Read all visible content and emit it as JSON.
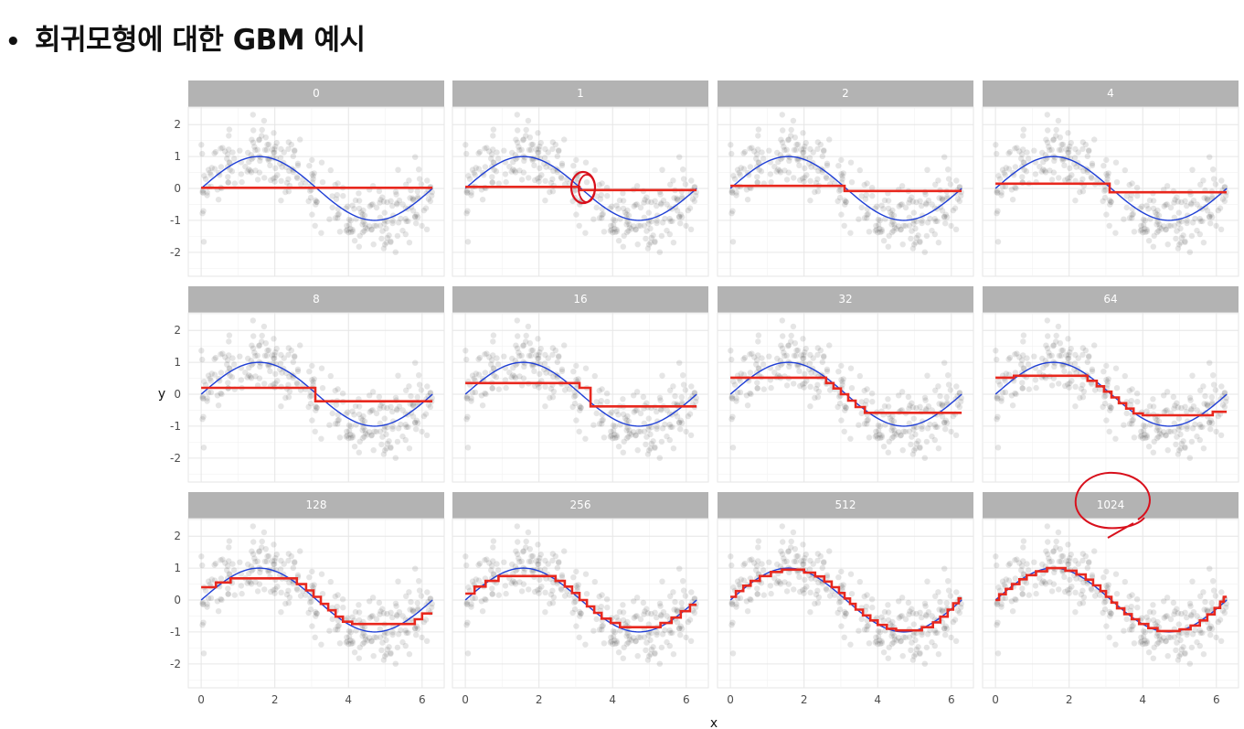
{
  "slide": {
    "bullet": "•",
    "title": "회귀모형에 대한 GBM 예시"
  },
  "colors": {
    "true_function": "#1f3fd6",
    "prediction": "#e8281e",
    "points": "#333333",
    "strip_background": "#b3b3b3",
    "annotation": "#d8101c"
  },
  "chart_data": {
    "type": "scatter",
    "facet_layout": {
      "rows": 3,
      "cols": 4
    },
    "xlabel": "x",
    "ylabel": "y",
    "xlim": [
      -0.35,
      6.6
    ],
    "ylim": [
      -2.75,
      2.55
    ],
    "xticks": [
      0,
      2,
      4,
      6
    ],
    "yticks": [
      2,
      1,
      0,
      -1,
      -2
    ],
    "grid": true,
    "panels": [
      {
        "label": "0",
        "prediction_steps": [
          [
            0.0,
            0.02
          ],
          [
            6.28,
            0.02
          ]
        ]
      },
      {
        "label": "1",
        "prediction_steps": [
          [
            0.0,
            0.05
          ],
          [
            3.1,
            0.05
          ],
          [
            3.1,
            -0.05
          ],
          [
            6.28,
            -0.05
          ]
        ]
      },
      {
        "label": "2",
        "prediction_steps": [
          [
            0.0,
            0.08
          ],
          [
            3.1,
            0.08
          ],
          [
            3.1,
            -0.08
          ],
          [
            6.28,
            -0.08
          ]
        ]
      },
      {
        "label": "4",
        "prediction_steps": [
          [
            0.0,
            0.15
          ],
          [
            3.1,
            0.15
          ],
          [
            3.1,
            -0.12
          ],
          [
            6.28,
            -0.12
          ]
        ]
      },
      {
        "label": "8",
        "prediction_steps": [
          [
            0.0,
            0.2
          ],
          [
            3.1,
            0.2
          ],
          [
            3.1,
            -0.22
          ],
          [
            6.28,
            -0.22
          ]
        ]
      },
      {
        "label": "16",
        "prediction_steps": [
          [
            0.0,
            0.35
          ],
          [
            3.1,
            0.35
          ],
          [
            3.1,
            0.2
          ],
          [
            3.4,
            0.2
          ],
          [
            3.4,
            -0.38
          ],
          [
            6.28,
            -0.38
          ]
        ]
      },
      {
        "label": "32",
        "prediction_steps": [
          [
            0.0,
            0.52
          ],
          [
            2.6,
            0.52
          ],
          [
            2.6,
            0.35
          ],
          [
            2.8,
            0.35
          ],
          [
            2.8,
            0.18
          ],
          [
            3.0,
            0.18
          ],
          [
            3.0,
            0.0
          ],
          [
            3.2,
            0.0
          ],
          [
            3.2,
            -0.2
          ],
          [
            3.4,
            -0.2
          ],
          [
            3.4,
            -0.4
          ],
          [
            3.65,
            -0.4
          ],
          [
            3.65,
            -0.58
          ],
          [
            6.28,
            -0.58
          ]
        ]
      },
      {
        "label": "64",
        "prediction_steps": [
          [
            0.0,
            0.52
          ],
          [
            0.5,
            0.52
          ],
          [
            0.5,
            0.58
          ],
          [
            2.5,
            0.58
          ],
          [
            2.5,
            0.42
          ],
          [
            2.75,
            0.42
          ],
          [
            2.75,
            0.25
          ],
          [
            2.95,
            0.25
          ],
          [
            2.95,
            0.08
          ],
          [
            3.15,
            0.08
          ],
          [
            3.15,
            -0.1
          ],
          [
            3.35,
            -0.1
          ],
          [
            3.35,
            -0.28
          ],
          [
            3.55,
            -0.28
          ],
          [
            3.55,
            -0.45
          ],
          [
            3.75,
            -0.45
          ],
          [
            3.75,
            -0.6
          ],
          [
            4.0,
            -0.6
          ],
          [
            4.0,
            -0.66
          ],
          [
            5.9,
            -0.66
          ],
          [
            5.9,
            -0.55
          ],
          [
            6.28,
            -0.55
          ]
        ]
      },
      {
        "label": "128",
        "prediction_steps": [
          [
            0.0,
            0.4
          ],
          [
            0.4,
            0.4
          ],
          [
            0.4,
            0.55
          ],
          [
            0.8,
            0.55
          ],
          [
            0.8,
            0.68
          ],
          [
            2.6,
            0.68
          ],
          [
            2.6,
            0.5
          ],
          [
            2.85,
            0.5
          ],
          [
            2.85,
            0.3
          ],
          [
            3.05,
            0.3
          ],
          [
            3.05,
            0.1
          ],
          [
            3.25,
            0.1
          ],
          [
            3.25,
            -0.12
          ],
          [
            3.45,
            -0.12
          ],
          [
            3.45,
            -0.32
          ],
          [
            3.65,
            -0.32
          ],
          [
            3.65,
            -0.52
          ],
          [
            3.85,
            -0.52
          ],
          [
            3.85,
            -0.68
          ],
          [
            4.1,
            -0.68
          ],
          [
            4.1,
            -0.75
          ],
          [
            5.8,
            -0.75
          ],
          [
            5.8,
            -0.6
          ],
          [
            6.0,
            -0.6
          ],
          [
            6.0,
            -0.42
          ],
          [
            6.28,
            -0.42
          ]
        ]
      },
      {
        "label": "256",
        "prediction_steps": [
          [
            0.0,
            0.2
          ],
          [
            0.25,
            0.2
          ],
          [
            0.25,
            0.42
          ],
          [
            0.55,
            0.42
          ],
          [
            0.55,
            0.6
          ],
          [
            0.9,
            0.6
          ],
          [
            0.9,
            0.75
          ],
          [
            2.45,
            0.75
          ],
          [
            2.45,
            0.6
          ],
          [
            2.7,
            0.6
          ],
          [
            2.7,
            0.42
          ],
          [
            2.9,
            0.42
          ],
          [
            2.9,
            0.22
          ],
          [
            3.1,
            0.22
          ],
          [
            3.1,
            0.0
          ],
          [
            3.3,
            0.0
          ],
          [
            3.3,
            -0.2
          ],
          [
            3.5,
            -0.2
          ],
          [
            3.5,
            -0.4
          ],
          [
            3.7,
            -0.4
          ],
          [
            3.7,
            -0.58
          ],
          [
            3.95,
            -0.58
          ],
          [
            3.95,
            -0.72
          ],
          [
            4.2,
            -0.72
          ],
          [
            4.2,
            -0.85
          ],
          [
            5.3,
            -0.85
          ],
          [
            5.3,
            -0.72
          ],
          [
            5.6,
            -0.72
          ],
          [
            5.6,
            -0.55
          ],
          [
            5.85,
            -0.55
          ],
          [
            5.85,
            -0.35
          ],
          [
            6.1,
            -0.35
          ],
          [
            6.1,
            -0.15
          ],
          [
            6.28,
            -0.15
          ]
        ]
      },
      {
        "label": "512",
        "prediction_steps": [
          [
            0.0,
            0.1
          ],
          [
            0.15,
            0.1
          ],
          [
            0.15,
            0.28
          ],
          [
            0.35,
            0.28
          ],
          [
            0.35,
            0.45
          ],
          [
            0.55,
            0.45
          ],
          [
            0.55,
            0.6
          ],
          [
            0.8,
            0.6
          ],
          [
            0.8,
            0.75
          ],
          [
            1.1,
            0.75
          ],
          [
            1.1,
            0.88
          ],
          [
            1.4,
            0.88
          ],
          [
            1.4,
            0.95
          ],
          [
            2.0,
            0.95
          ],
          [
            2.0,
            0.86
          ],
          [
            2.3,
            0.86
          ],
          [
            2.3,
            0.74
          ],
          [
            2.55,
            0.74
          ],
          [
            2.55,
            0.58
          ],
          [
            2.75,
            0.58
          ],
          [
            2.75,
            0.4
          ],
          [
            2.95,
            0.4
          ],
          [
            2.95,
            0.22
          ],
          [
            3.1,
            0.22
          ],
          [
            3.1,
            0.05
          ],
          [
            3.25,
            0.05
          ],
          [
            3.25,
            -0.12
          ],
          [
            3.4,
            -0.12
          ],
          [
            3.4,
            -0.3
          ],
          [
            3.6,
            -0.3
          ],
          [
            3.6,
            -0.48
          ],
          [
            3.8,
            -0.48
          ],
          [
            3.8,
            -0.64
          ],
          [
            4.0,
            -0.64
          ],
          [
            4.0,
            -0.78
          ],
          [
            4.25,
            -0.78
          ],
          [
            4.25,
            -0.9
          ],
          [
            4.5,
            -0.9
          ],
          [
            4.5,
            -0.95
          ],
          [
            5.2,
            -0.95
          ],
          [
            5.2,
            -0.85
          ],
          [
            5.5,
            -0.85
          ],
          [
            5.5,
            -0.7
          ],
          [
            5.7,
            -0.7
          ],
          [
            5.7,
            -0.52
          ],
          [
            5.9,
            -0.52
          ],
          [
            5.9,
            -0.3
          ],
          [
            6.05,
            -0.3
          ],
          [
            6.05,
            -0.1
          ],
          [
            6.2,
            -0.1
          ],
          [
            6.2,
            0.05
          ],
          [
            6.28,
            0.05
          ]
        ]
      },
      {
        "label": "1024",
        "prediction_steps": [
          [
            0.0,
            0.0
          ],
          [
            0.1,
            0.0
          ],
          [
            0.1,
            0.18
          ],
          [
            0.28,
            0.18
          ],
          [
            0.28,
            0.35
          ],
          [
            0.45,
            0.35
          ],
          [
            0.45,
            0.5
          ],
          [
            0.65,
            0.5
          ],
          [
            0.65,
            0.65
          ],
          [
            0.85,
            0.65
          ],
          [
            0.85,
            0.78
          ],
          [
            1.1,
            0.78
          ],
          [
            1.1,
            0.9
          ],
          [
            1.4,
            0.9
          ],
          [
            1.4,
            1.0
          ],
          [
            1.9,
            1.0
          ],
          [
            1.9,
            0.92
          ],
          [
            2.2,
            0.92
          ],
          [
            2.2,
            0.8
          ],
          [
            2.45,
            0.8
          ],
          [
            2.45,
            0.64
          ],
          [
            2.65,
            0.64
          ],
          [
            2.65,
            0.46
          ],
          [
            2.85,
            0.46
          ],
          [
            2.85,
            0.28
          ],
          [
            3.0,
            0.28
          ],
          [
            3.0,
            0.1
          ],
          [
            3.15,
            0.1
          ],
          [
            3.15,
            -0.08
          ],
          [
            3.3,
            -0.08
          ],
          [
            3.3,
            -0.26
          ],
          [
            3.5,
            -0.26
          ],
          [
            3.5,
            -0.44
          ],
          [
            3.7,
            -0.44
          ],
          [
            3.7,
            -0.6
          ],
          [
            3.9,
            -0.6
          ],
          [
            3.9,
            -0.75
          ],
          [
            4.15,
            -0.75
          ],
          [
            4.15,
            -0.88
          ],
          [
            4.4,
            -0.88
          ],
          [
            4.4,
            -0.97
          ],
          [
            5.0,
            -0.97
          ],
          [
            5.0,
            -0.92
          ],
          [
            5.3,
            -0.92
          ],
          [
            5.3,
            -0.8
          ],
          [
            5.55,
            -0.8
          ],
          [
            5.55,
            -0.64
          ],
          [
            5.75,
            -0.64
          ],
          [
            5.75,
            -0.45
          ],
          [
            5.95,
            -0.45
          ],
          [
            5.95,
            -0.25
          ],
          [
            6.1,
            -0.25
          ],
          [
            6.1,
            -0.05
          ],
          [
            6.2,
            -0.05
          ],
          [
            6.2,
            0.1
          ],
          [
            6.28,
            0.1
          ]
        ]
      }
    ]
  }
}
